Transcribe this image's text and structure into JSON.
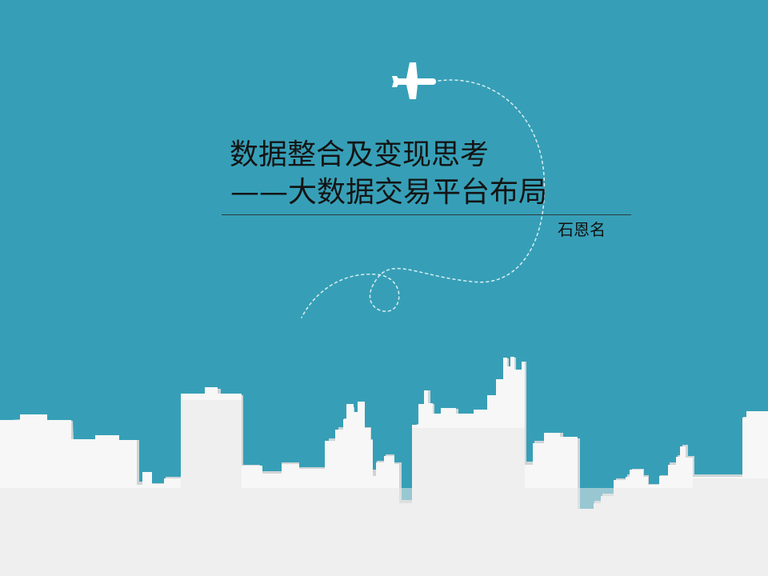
{
  "slide": {
    "title_line_1": "数据整合及变现思考",
    "title_line_2": "——大数据交易平台布局",
    "author": "石恩名"
  },
  "icons": {
    "airplane": "airplane-icon"
  },
  "colors": {
    "background": "#369fb7",
    "city_white": "#f7f7f7",
    "city_shadow": "#d7d7d7",
    "text": "#141414",
    "path": "#d9eef2"
  }
}
